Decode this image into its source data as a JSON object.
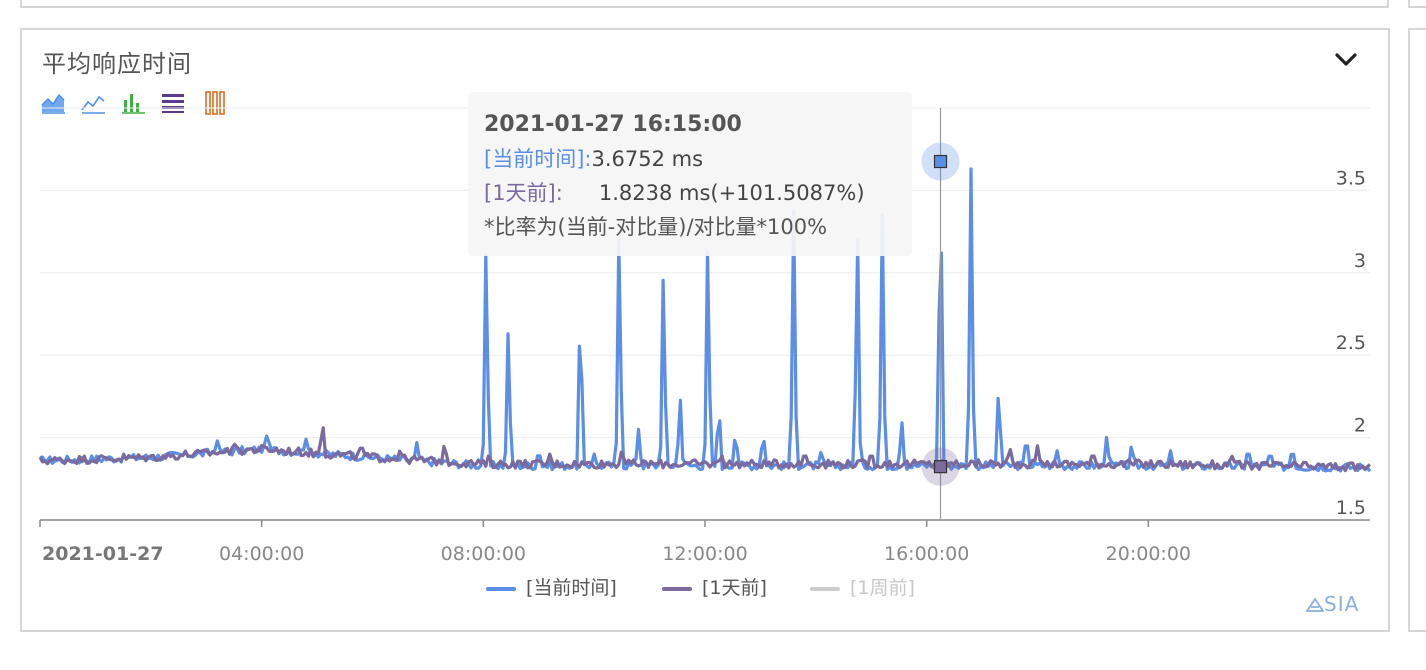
{
  "panel": {
    "title": "平均响应时间",
    "collapse_icon": "chevron-down-icon",
    "brand": "SIA",
    "toolbar": [
      {
        "name": "area-chart-icon",
        "color": "#4a90e2"
      },
      {
        "name": "line-chart-icon",
        "color": "#4a90e2"
      },
      {
        "name": "bar-chart-icon",
        "color": "#3cb043"
      },
      {
        "name": "stacked-rows-icon",
        "color": "#5b3b8c"
      },
      {
        "name": "stacked-columns-icon",
        "color": "#e06a1b"
      }
    ]
  },
  "tooltip": {
    "time": "2021-01-27 16:15:00",
    "current_label": "[当前时间]:",
    "current_value": "3.6752 ms",
    "prev_label": "[1天前]:",
    "prev_value": "1.8238 ms(+101.5087%)",
    "note": "*比率为(当前-对比量)/对比量*100%"
  },
  "chart_data": {
    "type": "line",
    "x_unit": "hours",
    "x_range": [
      0,
      24
    ],
    "x_ticks": [
      "2021-01-27",
      "04:00:00",
      "08:00:00",
      "12:00:00",
      "16:00:00",
      "20:00:00"
    ],
    "y_ticks": [
      "1.5",
      "2",
      "2.5",
      "3",
      "3.5"
    ],
    "ylim": [
      1.5,
      4.0
    ],
    "grid": true,
    "legend_position": "bottom",
    "hover_x": 16.25,
    "series": [
      {
        "name": "[当前时间]",
        "color": "#5b8ee6",
        "visible": true,
        "baseline": [
          [
            0,
            1.86
          ],
          [
            2,
            1.88
          ],
          [
            4,
            1.93
          ],
          [
            6,
            1.88
          ],
          [
            8,
            1.83
          ],
          [
            12,
            1.83
          ],
          [
            16,
            1.83
          ],
          [
            20,
            1.83
          ],
          [
            24,
            1.82
          ]
        ],
        "spikes": [
          [
            0.1,
            1.86
          ],
          [
            3.2,
            1.98
          ],
          [
            4.1,
            2.03
          ],
          [
            4.8,
            1.99
          ],
          [
            6.8,
            1.97
          ],
          [
            8.05,
            3.25
          ],
          [
            8.45,
            2.72
          ],
          [
            9.0,
            1.93
          ],
          [
            9.75,
            2.87
          ],
          [
            10.0,
            1.9
          ],
          [
            10.45,
            3.35
          ],
          [
            10.8,
            2.05
          ],
          [
            11.25,
            3.08
          ],
          [
            11.55,
            2.27
          ],
          [
            12.05,
            3.27
          ],
          [
            12.25,
            2.22
          ],
          [
            12.55,
            2.05
          ],
          [
            13.05,
            2.04
          ],
          [
            13.6,
            3.38
          ],
          [
            14.1,
            1.93
          ],
          [
            14.75,
            3.35
          ],
          [
            15.2,
            3.35
          ],
          [
            15.55,
            2.12
          ],
          [
            16.25,
            3.68
          ],
          [
            16.8,
            3.63
          ],
          [
            17.3,
            2.34
          ],
          [
            17.8,
            2.03
          ],
          [
            18.35,
            1.93
          ],
          [
            19.25,
            2.02
          ],
          [
            19.7,
            1.97
          ],
          [
            20.4,
            1.92
          ],
          [
            21.8,
            1.95
          ],
          [
            22.2,
            1.93
          ],
          [
            22.6,
            1.95
          ]
        ]
      },
      {
        "name": "[1天前]",
        "color": "#7a6a9e",
        "visible": true,
        "baseline": [
          [
            0,
            1.86
          ],
          [
            2,
            1.88
          ],
          [
            4,
            1.93
          ],
          [
            6,
            1.88
          ],
          [
            8,
            1.84
          ],
          [
            12,
            1.84
          ],
          [
            16,
            1.84
          ],
          [
            20,
            1.84
          ],
          [
            24,
            1.82
          ]
        ],
        "spikes": [
          [
            3.5,
            1.97
          ],
          [
            5.1,
            2.1
          ],
          [
            5.8,
            1.97
          ],
          [
            6.5,
            1.93
          ],
          [
            7.3,
            1.97
          ],
          [
            8.1,
            1.9
          ],
          [
            9.2,
            1.9
          ],
          [
            10.5,
            1.93
          ],
          [
            12.3,
            1.9
          ],
          [
            13.8,
            1.92
          ],
          [
            15.0,
            1.92
          ],
          [
            16.25,
            1.82
          ],
          [
            17.5,
            1.95
          ],
          [
            18.0,
            1.95
          ],
          [
            19.0,
            1.92
          ],
          [
            21.5,
            1.9
          ]
        ]
      },
      {
        "name": "[1周前]",
        "color": "#cccccc",
        "visible": false
      }
    ],
    "hover_points": [
      {
        "series": "[当前时间]",
        "y": 3.6752
      },
      {
        "series": "[1天前]",
        "y": 1.8238
      }
    ]
  }
}
